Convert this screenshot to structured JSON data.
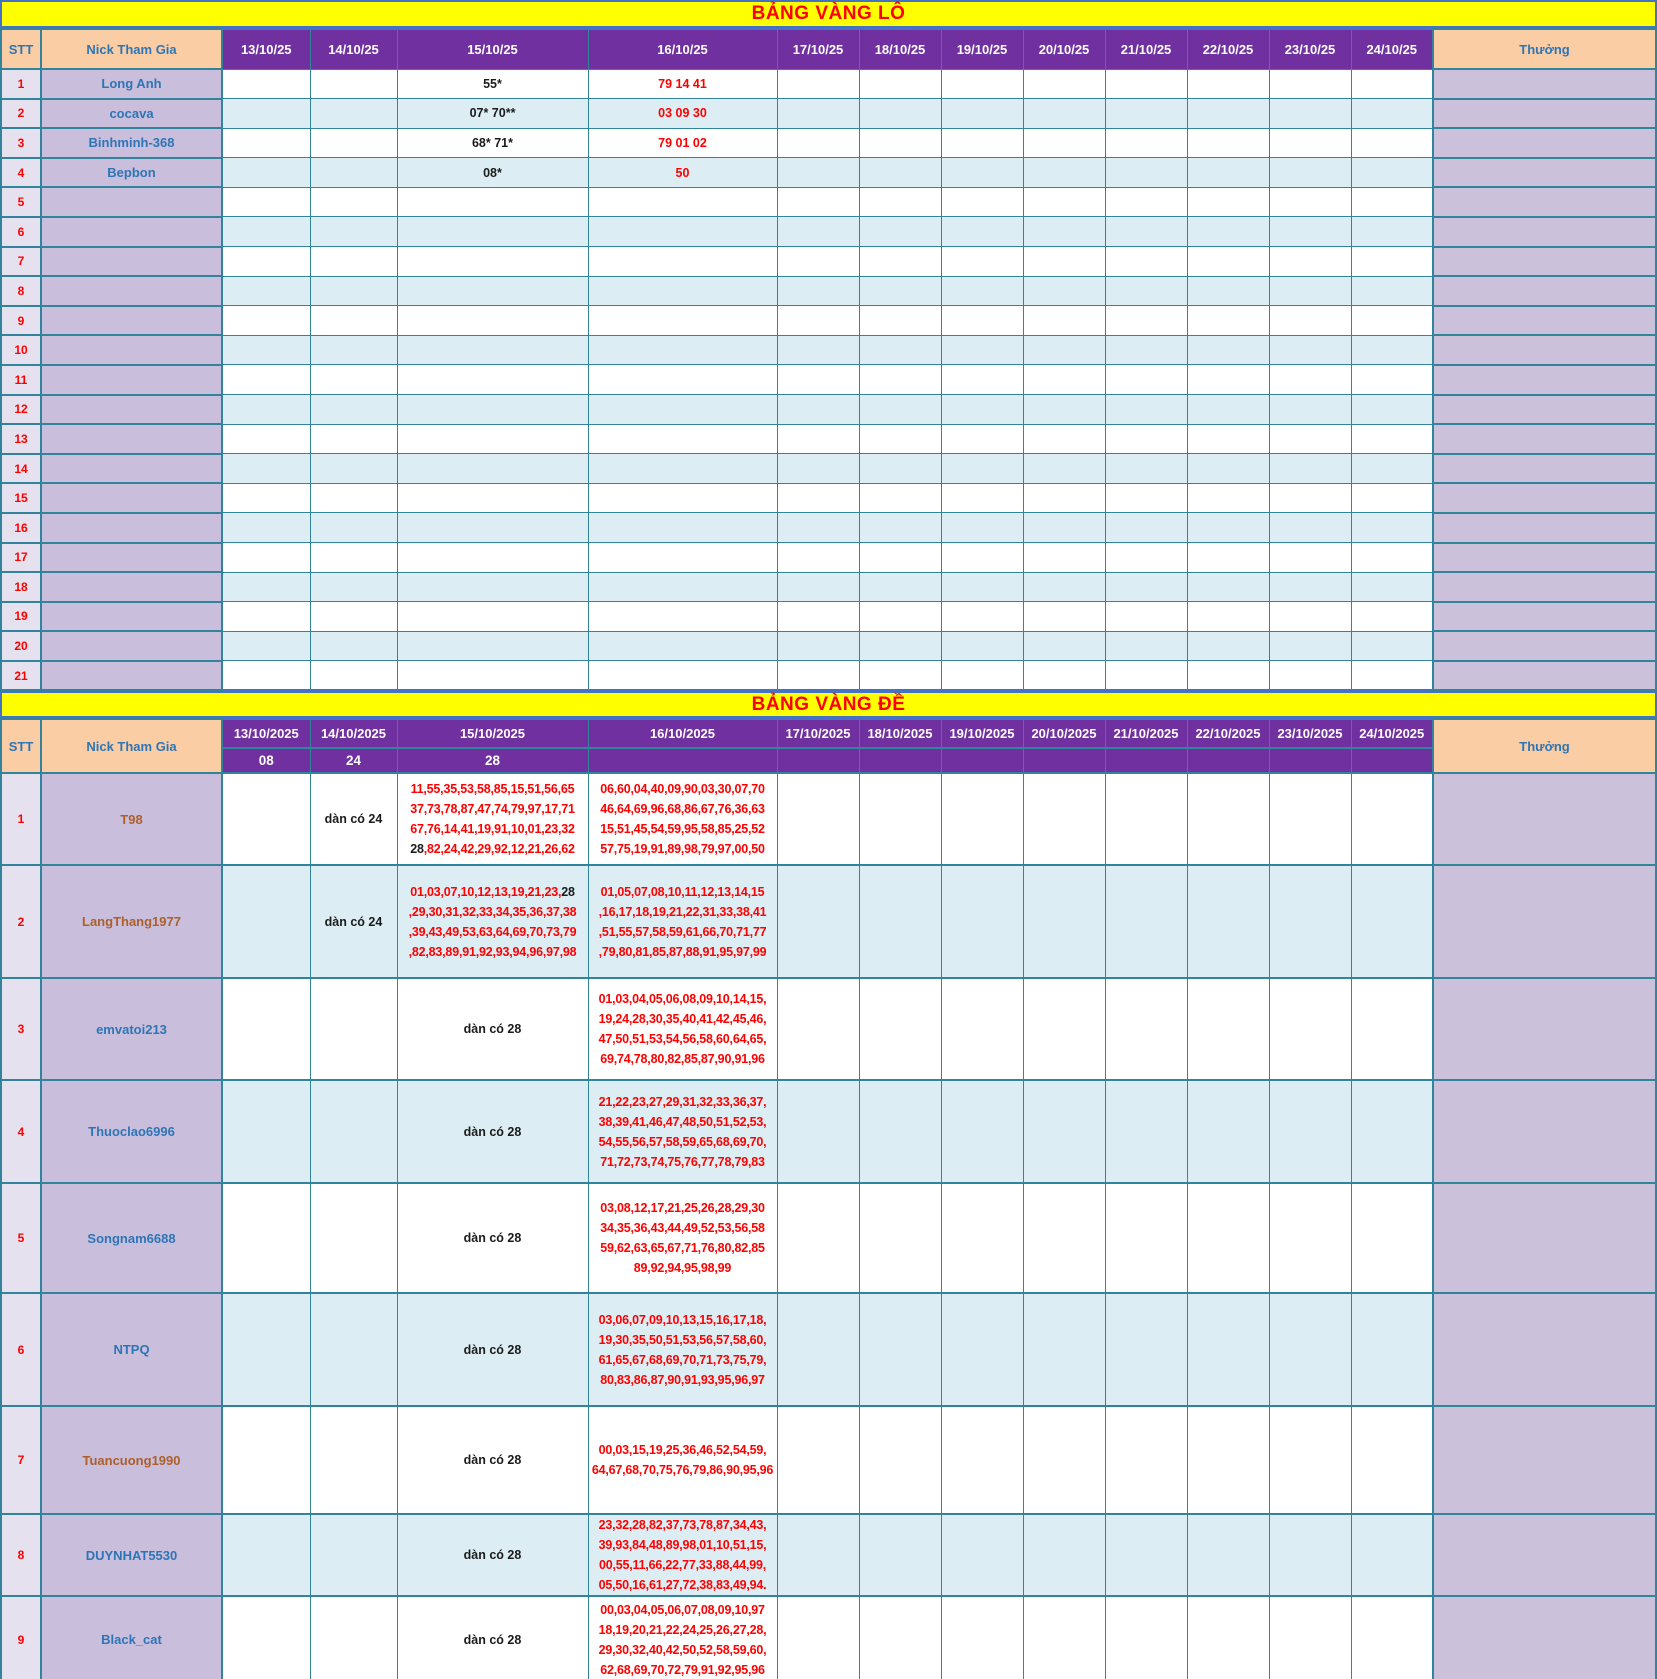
{
  "colors": {
    "banner_bg": "#FFFF00",
    "banner_text": "#FF0000",
    "header_bg": "#7030A0",
    "header_text": "#FFFFFF",
    "label_bg": "#FACDA4",
    "label_text": "#2E75B6",
    "stt_cell_bg": "#E5E1EF",
    "name_cell_bg": "#C9BEDC",
    "reward_cell_bg": "#CBC1DA",
    "stripe_bg": "#DCEEF4",
    "grid_border": "#31849B",
    "frame_border": "#4472C4",
    "number_red": "#FF0000",
    "number_black": "#1B1B1B",
    "name_blue": "#2E75B6",
    "name_brown": "#AC5F2B"
  },
  "lo_table": {
    "banner": "BẢNG VÀNG LÔ",
    "stt_header": "STT",
    "nick_header": "Nick Tham Gia",
    "reward_header": "Thưởng",
    "dates": [
      "13/10/25",
      "14/10/25",
      "15/10/25",
      "16/10/25",
      "17/10/25",
      "18/10/25",
      "19/10/25",
      "20/10/25",
      "21/10/25",
      "22/10/25",
      "23/10/25",
      "24/10/25"
    ],
    "total_rows": 21,
    "entries": [
      {
        "stt": "1",
        "nick": "Long Anh",
        "d15": "55*",
        "d16": "79 14 41"
      },
      {
        "stt": "2",
        "nick": "cocava",
        "d15": "07* 70**",
        "d16": "03 09 30"
      },
      {
        "stt": "3",
        "nick": "Binhminh-368",
        "d15": "68* 71*",
        "d16": "79 01 02"
      },
      {
        "stt": "4",
        "nick": "Bepbon",
        "d15": "08*",
        "d16": "50"
      }
    ]
  },
  "de_table": {
    "banner": "BẢNG VÀNG ĐỀ",
    "stt_header": "STT",
    "nick_header": "Nick Tham Gia",
    "reward_header": "Thưởng",
    "dates": [
      "13/10/2025",
      "14/10/2025",
      "15/10/2025",
      "16/10/2025",
      "17/10/2025",
      "18/10/2025",
      "19/10/2025",
      "20/10/2025",
      "21/10/2025",
      "22/10/2025",
      "23/10/2025",
      "24/10/2025"
    ],
    "results": [
      "08",
      "24",
      "28",
      "",
      "",
      "",
      "",
      "",
      "",
      "",
      "",
      ""
    ],
    "entries": [
      {
        "stt": "1",
        "nick": "T98",
        "nick_color": "brown",
        "note_col": "d14",
        "note": "dàn có 24",
        "d15_lines": [
          [
            [
              "11,55,35,53,58,85,15,51,56,65",
              "red"
            ]
          ],
          [
            [
              "37,73,78,87,47,74,79,97,17,71",
              "red"
            ]
          ],
          [
            [
              "67,76,14,41,19,91,10,01,23,32",
              "red"
            ]
          ],
          [
            [
              "28",
              "black"
            ],
            [
              ",82,24,42,29,92,12,21,26,62",
              "red"
            ]
          ]
        ],
        "d16_lines": [
          [
            [
              "06,60,04,40,09,90,03,30,07,70",
              "red"
            ]
          ],
          [
            [
              "46,64,69,96,68,86,67,76,36,63",
              "red"
            ]
          ],
          [
            [
              "15,51,45,54,59,95,58,85,25,52",
              "red"
            ]
          ],
          [
            [
              "57,75,19,91,89,98,79,97,00,50",
              "red"
            ]
          ]
        ]
      },
      {
        "stt": "2",
        "nick": "LangThang1977",
        "nick_color": "brown",
        "note_col": "d14",
        "note": "dàn có 24",
        "d15_lines": [
          [
            [
              "01,03,07,10,12,13,19,21,23,",
              "red"
            ],
            [
              "28",
              "black"
            ]
          ],
          [
            [
              ",29,30,31,32,33,34,35,36,37,38",
              "red"
            ]
          ],
          [
            [
              ",39,43,49,53,63,64,69,70,73,79",
              "red"
            ]
          ],
          [
            [
              ",82,83,89,91,92,93,94,96,97,98",
              "red"
            ]
          ]
        ],
        "d16_lines": [
          [
            [
              "01,05,07,08,10,11,12,13,14,15",
              "red"
            ]
          ],
          [
            [
              ",16,17,18,19,21,22,31,33,38,41",
              "red"
            ]
          ],
          [
            [
              ",51,55,57,58,59,61,66,70,71,77",
              "red"
            ]
          ],
          [
            [
              ",79,80,81,85,87,88,91,95,97,99",
              "red"
            ]
          ]
        ]
      },
      {
        "stt": "3",
        "nick": "emvatoi213",
        "nick_color": "blue",
        "note_col": "d15",
        "note": "dàn có 28",
        "d16_lines": [
          [
            [
              "01,03,04,05,06,08,09,10,14,15,",
              "red"
            ]
          ],
          [
            [
              "19,24,28,30,35,40,41,42,45,46,",
              "red"
            ]
          ],
          [
            [
              "47,50,51,53,54,56,58,60,64,65,",
              "red"
            ]
          ],
          [
            [
              "69,74,78,80,82,85,87,90,91,96",
              "red"
            ]
          ]
        ]
      },
      {
        "stt": "4",
        "nick": "Thuoclao6996",
        "nick_color": "blue",
        "note_col": "d15",
        "note": "dàn có 28",
        "d16_lines": [
          [
            [
              "21,22,23,27,29,31,32,33,36,37,",
              "red"
            ]
          ],
          [
            [
              "38,39,41,46,47,48,50,51,52,53,",
              "red"
            ]
          ],
          [
            [
              "54,55,56,57,58,59,65,68,69,70,",
              "red"
            ]
          ],
          [
            [
              "71,72,73,74,75,76,77,78,79,83",
              "red"
            ]
          ]
        ]
      },
      {
        "stt": "5",
        "nick": "Songnam6688",
        "nick_color": "blue",
        "note_col": "d15",
        "note": "dàn có 28",
        "d16_lines": [
          [
            [
              "03,08,12,17,21,25,26,28,29,30",
              "red"
            ]
          ],
          [
            [
              "34,35,36,43,44,49,52,53,56,58",
              "red"
            ]
          ],
          [
            [
              "59,62,63,65,67,71,76,80,82,85",
              "red"
            ]
          ],
          [
            [
              "89,92,94,95,98,99",
              "red"
            ]
          ]
        ]
      },
      {
        "stt": "6",
        "nick": "NTPQ",
        "nick_color": "blue",
        "note_col": "d15",
        "note": "dàn có 28",
        "d16_lines": [
          [
            [
              "03,06,07,09,10,13,15,16,17,18,",
              "red"
            ]
          ],
          [
            [
              "19,30,35,50,51,53,56,57,58,60,",
              "red"
            ]
          ],
          [
            [
              "61,65,67,68,69,70,71,73,75,79,",
              "red"
            ]
          ],
          [
            [
              "80,83,86,87,90,91,93,95,96,97",
              "red"
            ]
          ]
        ]
      },
      {
        "stt": "7",
        "nick": "Tuancuong1990",
        "nick_color": "brown",
        "note_col": "d15",
        "note": "dàn có 28",
        "d16_lines": [
          [
            [
              "00,03,15,19,25,36,46,52,54,59,",
              "red"
            ]
          ],
          [
            [
              "64,67,68,70,75,76,79,86,90,95,96",
              "red"
            ]
          ]
        ]
      },
      {
        "stt": "8",
        "nick": "DUYNHAT5530",
        "nick_color": "blue",
        "note_col": "d15",
        "note": "dàn có 28",
        "d16_lines": [
          [
            [
              "23,32,28,82,37,73,78,87,34,43,",
              "red"
            ]
          ],
          [
            [
              "39,93,84,48,89,98,01,10,51,15,",
              "red"
            ]
          ],
          [
            [
              "00,55,11,66,22,77,33,88,44,99,",
              "red"
            ]
          ],
          [
            [
              "05,50,16,61,27,72,38,83,49,94.",
              "red"
            ]
          ]
        ]
      },
      {
        "stt": "9",
        "nick": "Black_cat",
        "nick_color": "blue",
        "note_col": "d15",
        "note": "dàn có 28",
        "d16_lines": [
          [
            [
              "00,03,04,05,06,07,08,09,10,97",
              "red"
            ]
          ],
          [
            [
              "18,19,20,21,22,24,25,26,27,28,",
              "red"
            ]
          ],
          [
            [
              "29,30,32,40,42,50,52,58,59,60,",
              "red"
            ]
          ],
          [
            [
              "62,68,69,70,72,79,91,92,95,96",
              "red"
            ]
          ]
        ]
      }
    ]
  }
}
